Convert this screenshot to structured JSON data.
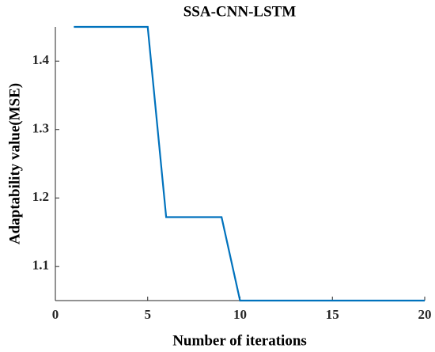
{
  "chart_data": {
    "type": "line",
    "title": "SSA-CNN-LSTM",
    "x_label": "Number of iterations",
    "y_label": "Adaptability value(MSE)",
    "x": [
      1,
      2,
      3,
      4,
      5,
      6,
      7,
      8,
      9,
      10,
      11,
      12,
      13,
      14,
      15,
      16,
      17,
      18,
      19,
      20
    ],
    "series": [
      {
        "color": "#0072bd",
        "values": [
          1.45,
          1.45,
          1.45,
          1.45,
          1.45,
          1.172,
          1.172,
          1.172,
          1.172,
          1.05,
          1.05,
          1.05,
          1.05,
          1.05,
          1.05,
          1.05,
          1.05,
          1.05,
          1.05,
          1.05
        ]
      }
    ],
    "xlim": [
      0,
      20
    ],
    "xticks": [
      0,
      5,
      10,
      15,
      20
    ],
    "ylim": [
      1.05,
      1.45
    ],
    "yticks": [
      1.1,
      1.2,
      1.3,
      1.4
    ]
  }
}
